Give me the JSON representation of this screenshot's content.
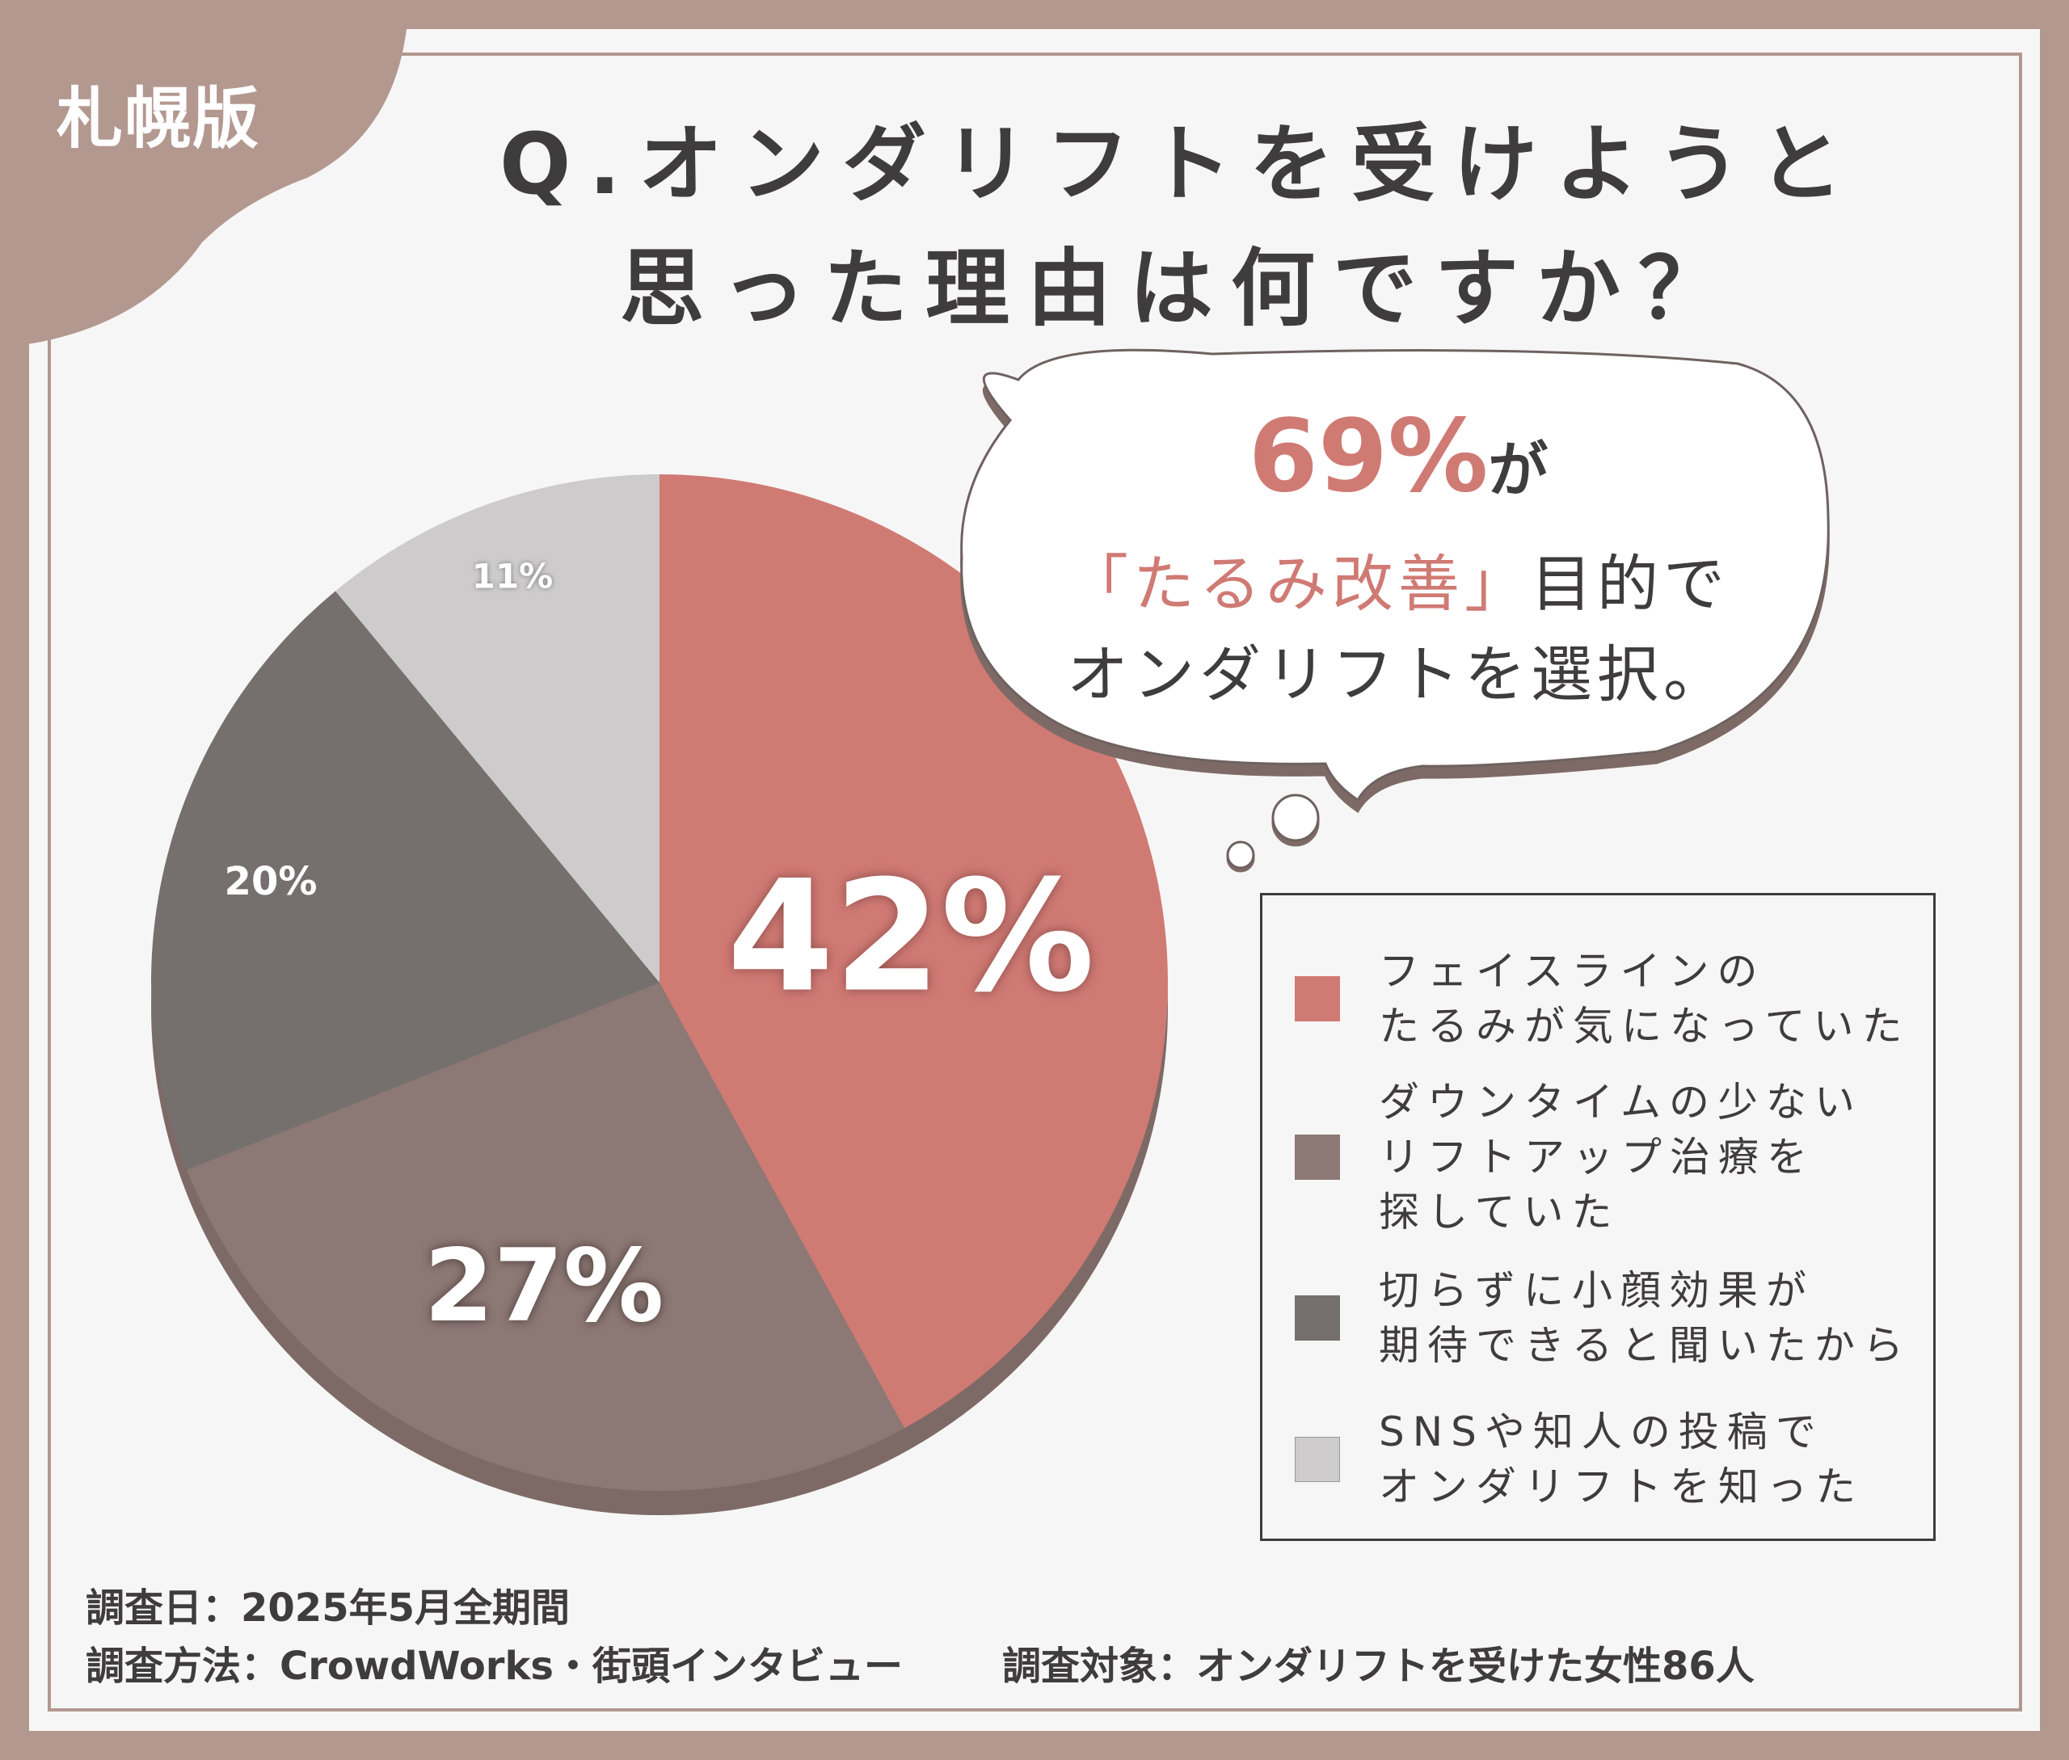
{
  "edition_label": "札幌版",
  "title": {
    "line1": "Q.オンダリフトを受けようと",
    "line2": "思った理由は何ですか？"
  },
  "callout": {
    "highlight_percent": "69%",
    "highlight_suffix": "が",
    "line2_highlight": "「たるみ改善」",
    "line2_rest": "目的で",
    "line3": "オンダリフトを選択。"
  },
  "chart_data": {
    "type": "pie",
    "start": "top",
    "direction": "clockwise",
    "categories": [
      "フェイスラインの\nたるみが気になっていた",
      "ダウンタイムの少ない\nリフトアップ治療を\n探していた",
      "切らずに小顔効果が\n期待できると聞いたから",
      "SNSや知人の投稿で\nオンダリフトを知った"
    ],
    "values": [
      42,
      27,
      20,
      11
    ],
    "data_labels": [
      "42%",
      "27%",
      "20%",
      "11%"
    ],
    "colors": [
      "#d07a74",
      "#8c7874",
      "#75706e",
      "#cdcbcb"
    ],
    "legend": "right"
  },
  "footer": {
    "survey_date": "調査日：2025年5月全期間",
    "survey_method": "調査方法：CrowdWorks・街頭インタビュー",
    "survey_target": "調査対象：オンダリフトを受けた女性86人"
  },
  "colors": {
    "frame": "#b39890",
    "accent": "#d07a74",
    "text": "#3e3c3c"
  }
}
